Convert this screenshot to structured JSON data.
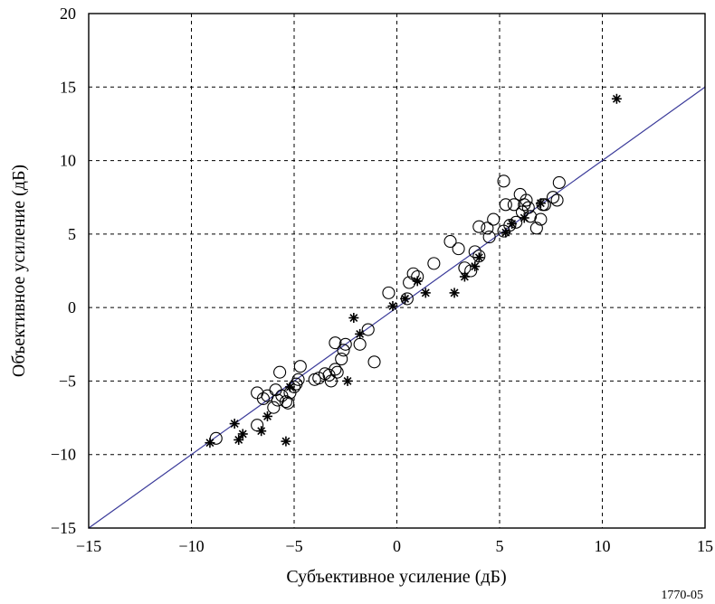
{
  "chart_data": {
    "type": "scatter",
    "title": "",
    "xlabel": "Субъективное усиление (дБ)",
    "ylabel": "Объективное усиление (дБ)",
    "xlim": [
      -15,
      15
    ],
    "ylim": [
      -15,
      20
    ],
    "xticks": [
      -15,
      -10,
      -5,
      0,
      5,
      10,
      15
    ],
    "yticks": [
      -15,
      -10,
      -5,
      0,
      5,
      10,
      15,
      20
    ],
    "xtick_labels": [
      "−15",
      "−10",
      "−5",
      "0",
      "5",
      "10",
      "15"
    ],
    "ytick_labels": [
      "−15",
      "−10",
      "−5",
      "0",
      "5",
      "10",
      "15",
      "20"
    ],
    "grid": true,
    "reference_line": {
      "type": "line",
      "x": [
        -15,
        15
      ],
      "y": [
        -15,
        15
      ],
      "color": "#3b3b9a"
    },
    "series": [
      {
        "marker": "circle",
        "points": [
          [
            -8.8,
            -8.9
          ],
          [
            -6.8,
            -8.0
          ],
          [
            -6.8,
            -5.8
          ],
          [
            -6.5,
            -6.2
          ],
          [
            -6.3,
            -6.0
          ],
          [
            -6.0,
            -6.8
          ],
          [
            -5.9,
            -5.6
          ],
          [
            -5.8,
            -6.3
          ],
          [
            -5.7,
            -4.4
          ],
          [
            -5.6,
            -6.0
          ],
          [
            -5.4,
            -6.4
          ],
          [
            -5.3,
            -6.5
          ],
          [
            -5.2,
            -5.8
          ],
          [
            -5.0,
            -5.4
          ],
          [
            -4.9,
            -5.2
          ],
          [
            -4.8,
            -4.9
          ],
          [
            -4.7,
            -4.0
          ],
          [
            -4.0,
            -4.9
          ],
          [
            -3.8,
            -4.8
          ],
          [
            -3.5,
            -4.5
          ],
          [
            -3.3,
            -4.6
          ],
          [
            -3.2,
            -5.0
          ],
          [
            -3.0,
            -4.2
          ],
          [
            -3.0,
            -2.4
          ],
          [
            -2.9,
            -4.4
          ],
          [
            -2.7,
            -3.5
          ],
          [
            -2.6,
            -2.9
          ],
          [
            -2.5,
            -2.5
          ],
          [
            -1.8,
            -2.5
          ],
          [
            -1.4,
            -1.5
          ],
          [
            -1.1,
            -3.7
          ],
          [
            -0.4,
            1.0
          ],
          [
            0.5,
            0.6
          ],
          [
            0.6,
            1.7
          ],
          [
            0.8,
            2.3
          ],
          [
            1.0,
            2.1
          ],
          [
            1.8,
            3.0
          ],
          [
            2.6,
            4.5
          ],
          [
            3.0,
            4.0
          ],
          [
            3.3,
            2.7
          ],
          [
            3.6,
            2.5
          ],
          [
            3.8,
            3.8
          ],
          [
            4.0,
            3.5
          ],
          [
            4.0,
            5.5
          ],
          [
            4.4,
            5.4
          ],
          [
            4.5,
            4.8
          ],
          [
            4.7,
            6.0
          ],
          [
            5.2,
            5.2
          ],
          [
            5.2,
            8.6
          ],
          [
            5.3,
            7.0
          ],
          [
            5.5,
            5.6
          ],
          [
            5.7,
            7.0
          ],
          [
            5.8,
            5.8
          ],
          [
            6.0,
            7.7
          ],
          [
            6.1,
            6.5
          ],
          [
            6.2,
            7.0
          ],
          [
            6.3,
            7.3
          ],
          [
            6.4,
            6.8
          ],
          [
            6.5,
            6.2
          ],
          [
            6.8,
            5.4
          ],
          [
            7.0,
            6.0
          ],
          [
            7.1,
            7.0
          ],
          [
            7.2,
            7.0
          ],
          [
            7.6,
            7.5
          ],
          [
            7.8,
            7.3
          ],
          [
            7.9,
            8.5
          ]
        ]
      },
      {
        "marker": "star",
        "points": [
          [
            -9.1,
            -9.2
          ],
          [
            -7.9,
            -7.9
          ],
          [
            -7.7,
            -9.0
          ],
          [
            -7.5,
            -8.6
          ],
          [
            -6.6,
            -8.4
          ],
          [
            -6.3,
            -7.4
          ],
          [
            -5.4,
            -9.1
          ],
          [
            -5.2,
            -5.4
          ],
          [
            -2.4,
            -5.0
          ],
          [
            -2.1,
            -0.7
          ],
          [
            -1.8,
            -1.8
          ],
          [
            -0.2,
            0.1
          ],
          [
            0.4,
            0.6
          ],
          [
            1.0,
            1.8
          ],
          [
            1.4,
            1.0
          ],
          [
            2.8,
            1.0
          ],
          [
            3.3,
            2.1
          ],
          [
            3.8,
            2.8
          ],
          [
            4.0,
            3.4
          ],
          [
            5.3,
            5.1
          ],
          [
            5.6,
            5.7
          ],
          [
            6.2,
            6.1
          ],
          [
            7.0,
            7.1
          ],
          [
            10.7,
            14.2
          ]
        ]
      }
    ]
  },
  "figure_id": "1770-05"
}
